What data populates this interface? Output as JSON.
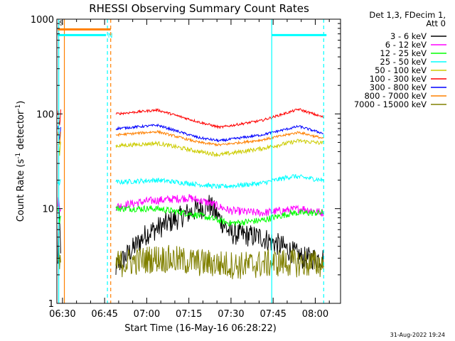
{
  "chart_data": {
    "type": "line",
    "title": "RHESSI Observing Summary Count Rates",
    "xlabel": "Start Time (16-May-16 06:28:22)",
    "ylabel_main": "Count Rate (s",
    "ylabel_sup1": "-1",
    "ylabel_mid": " detector",
    "ylabel_sup2": "-1",
    "ylabel_end": ")",
    "yscale": "log",
    "ylim": [
      1,
      1000
    ],
    "xlim": [
      "06:28",
      "08:09"
    ],
    "xticks": [
      "06:30",
      "06:45",
      "07:00",
      "07:15",
      "07:30",
      "07:45",
      "08:00"
    ],
    "yticks": [
      "1",
      "10",
      "100",
      "1000"
    ],
    "legend_header": [
      "Det 1,3, FDecim 1,",
      "Att 0"
    ],
    "legend_position": "right",
    "flag_labels": {
      "s": "S",
      "n": "N"
    },
    "vertical_markers": [
      {
        "time": "06:28:40",
        "color": "#00ffff",
        "style": "solid"
      },
      {
        "time": "06:30:40",
        "color": "#ff8000",
        "style": "solid"
      },
      {
        "time": "06:46:00",
        "color": "#00ffff",
        "style": "dashed"
      },
      {
        "time": "06:47:10",
        "color": "#ff8000",
        "style": "dashed"
      },
      {
        "time": "07:44:30",
        "color": "#00ffff",
        "style": "solid"
      },
      {
        "time": "08:03:00",
        "color": "#00ffff",
        "style": "dashed"
      }
    ],
    "flag_bars": [
      {
        "color": "#ff8000",
        "start": "06:28:20",
        "end": "06:47:10",
        "level": 780
      },
      {
        "color": "#00ffff",
        "start": "06:28:20",
        "end": "06:45:30",
        "level": 680
      },
      {
        "color": "#00ffff",
        "start": "07:44:30",
        "end": "08:04:00",
        "level": 680
      }
    ],
    "series": [
      {
        "name": "3 - 6 keV",
        "color": "#000000",
        "segments": [
          [
            "06:28:22",
            "06:29:30"
          ],
          [
            "06:49:00",
            "08:03:00"
          ]
        ],
        "knots": [
          [
            0,
            2.4
          ],
          [
            0.15,
            5.5
          ],
          [
            0.35,
            9.0
          ],
          [
            0.45,
            11.0
          ],
          [
            0.55,
            5.5
          ],
          [
            0.7,
            5.0
          ],
          [
            0.8,
            4.0
          ],
          [
            0.9,
            3.0
          ],
          [
            1,
            3.0
          ]
        ],
        "noise": 0.28
      },
      {
        "name": "6 - 12 keV",
        "color": "#ff00ff",
        "segments": [
          [
            "06:28:22",
            "06:29:30"
          ],
          [
            "06:49:00",
            "08:03:00"
          ]
        ],
        "knots": [
          [
            0,
            10.5
          ],
          [
            0.15,
            12.0
          ],
          [
            0.35,
            13.0
          ],
          [
            0.45,
            11.5
          ],
          [
            0.55,
            9.5
          ],
          [
            0.7,
            9.0
          ],
          [
            0.8,
            9.5
          ],
          [
            0.9,
            10.0
          ],
          [
            1,
            9.0
          ]
        ],
        "noise": 0.1
      },
      {
        "name": "12 - 25 keV",
        "color": "#00ff00",
        "segments": [
          [
            "06:28:22",
            "06:29:30"
          ],
          [
            "06:49:00",
            "08:03:00"
          ]
        ],
        "knots": [
          [
            0,
            10.0
          ],
          [
            0.2,
            10.0
          ],
          [
            0.4,
            8.5
          ],
          [
            0.55,
            7.0
          ],
          [
            0.7,
            7.5
          ],
          [
            0.85,
            9.0
          ],
          [
            1,
            9.0
          ]
        ],
        "noise": 0.08
      },
      {
        "name": "25 - 50 keV",
        "color": "#00ffff",
        "segments": [
          [
            "06:28:22",
            "06:29:30"
          ],
          [
            "06:49:00",
            "08:03:00"
          ]
        ],
        "knots": [
          [
            0,
            19.0
          ],
          [
            0.2,
            20.0
          ],
          [
            0.4,
            18.0
          ],
          [
            0.5,
            17.0
          ],
          [
            0.7,
            18.5
          ],
          [
            0.85,
            22.0
          ],
          [
            1,
            20.0
          ]
        ],
        "noise": 0.06
      },
      {
        "name": "50 - 100 keV",
        "color": "#cccc00",
        "segments": [
          [
            "06:28:22",
            "06:29:30"
          ],
          [
            "06:49:00",
            "08:03:00"
          ]
        ],
        "knots": [
          [
            0,
            46.0
          ],
          [
            0.2,
            49.0
          ],
          [
            0.4,
            40.0
          ],
          [
            0.5,
            37.0
          ],
          [
            0.7,
            43.0
          ],
          [
            0.88,
            52.0
          ],
          [
            1,
            49.0
          ]
        ],
        "noise": 0.05
      },
      {
        "name": "100 - 300 keV",
        "color": "#ff0000",
        "segments": [
          [
            "06:28:22",
            "06:29:30"
          ],
          [
            "06:49:00",
            "08:03:00"
          ]
        ],
        "knots": [
          [
            0,
            100.0
          ],
          [
            0.2,
            110.0
          ],
          [
            0.4,
            82.0
          ],
          [
            0.5,
            72.0
          ],
          [
            0.7,
            85.0
          ],
          [
            0.88,
            112.0
          ],
          [
            1,
            92.0
          ]
        ],
        "noise": 0.03
      },
      {
        "name": "300 - 800 keV",
        "color": "#0000ff",
        "segments": [
          [
            "06:28:22",
            "06:29:30"
          ],
          [
            "06:49:00",
            "08:03:00"
          ]
        ],
        "knots": [
          [
            0,
            70.0
          ],
          [
            0.2,
            76.0
          ],
          [
            0.4,
            56.0
          ],
          [
            0.5,
            52.0
          ],
          [
            0.7,
            60.0
          ],
          [
            0.88,
            74.0
          ],
          [
            1,
            62.0
          ]
        ],
        "noise": 0.03
      },
      {
        "name": "800 - 7000 keV",
        "color": "#ff8000",
        "segments": [
          [
            "06:28:22",
            "06:29:30"
          ],
          [
            "06:49:00",
            "08:03:00"
          ]
        ],
        "knots": [
          [
            0,
            60.0
          ],
          [
            0.2,
            65.0
          ],
          [
            0.4,
            50.0
          ],
          [
            0.5,
            47.0
          ],
          [
            0.7,
            53.0
          ],
          [
            0.88,
            64.0
          ],
          [
            1,
            55.0
          ]
        ],
        "noise": 0.03
      },
      {
        "name": "7000 - 15000 keV",
        "color": "#808000",
        "segments": [
          [
            "06:28:22",
            "06:29:30"
          ],
          [
            "06:49:00",
            "08:03:00"
          ]
        ],
        "knots": [
          [
            0,
            2.6
          ],
          [
            0.2,
            3.0
          ],
          [
            0.4,
            2.7
          ],
          [
            0.6,
            2.5
          ],
          [
            0.8,
            2.7
          ],
          [
            1,
            2.6
          ]
        ],
        "noise": 0.35
      }
    ]
  },
  "footer": {
    "timestamp": "31-Aug-2022 19:24"
  }
}
